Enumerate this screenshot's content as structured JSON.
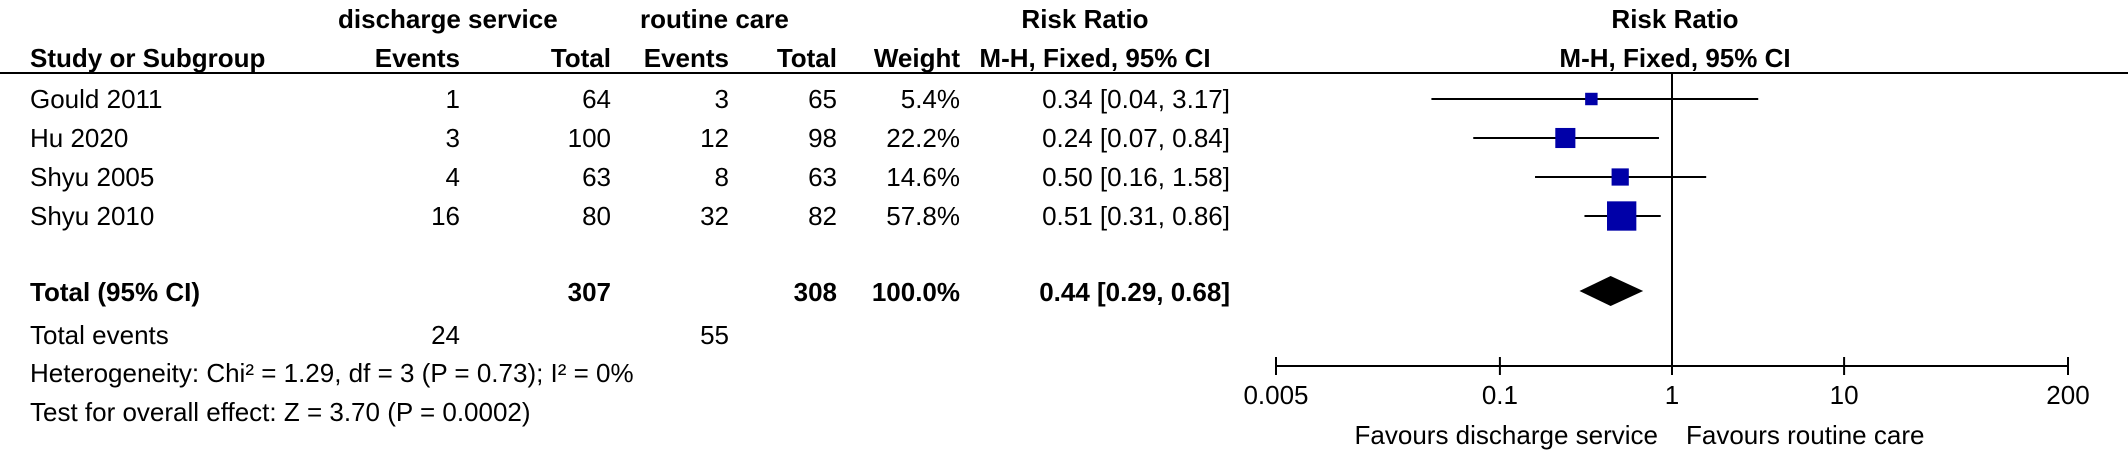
{
  "header": {
    "group1": "discharge service",
    "group2": "routine care",
    "rr_table": "Risk Ratio",
    "rr_plot": "Risk Ratio",
    "col_study": "Study or Subgroup",
    "col_events1": "Events",
    "col_total1": "Total",
    "col_events2": "Events",
    "col_total2": "Total",
    "col_weight": "Weight",
    "col_method_table": "M-H, Fixed, 95% CI",
    "col_method_plot": "M-H, Fixed, 95% CI"
  },
  "studies": [
    {
      "name": "Gould 2011",
      "events1": "1",
      "total1": "64",
      "events2": "3",
      "total2": "65",
      "weight": "5.4%",
      "ci": "0.34 [0.04, 3.17]"
    },
    {
      "name": "Hu 2020",
      "events1": "3",
      "total1": "100",
      "events2": "12",
      "total2": "98",
      "weight": "22.2%",
      "ci": "0.24 [0.07, 0.84]"
    },
    {
      "name": "Shyu 2005",
      "events1": "4",
      "total1": "63",
      "events2": "8",
      "total2": "63",
      "weight": "14.6%",
      "ci": "0.50 [0.16, 1.58]"
    },
    {
      "name": "Shyu 2010",
      "events1": "16",
      "total1": "80",
      "events2": "32",
      "total2": "82",
      "weight": "57.8%",
      "ci": "0.51 [0.31, 0.86]"
    }
  ],
  "total": {
    "label": "Total (95% CI)",
    "total1": "307",
    "total2": "308",
    "weight": "100.0%",
    "ci": "0.44 [0.29, 0.68]"
  },
  "total_events": {
    "label": "Total events",
    "events1": "24",
    "events2": "55"
  },
  "heterogeneity": "Heterogeneity: Chi² = 1.29, df = 3 (P = 0.73); I² = 0%",
  "overall_effect": "Test for overall effect: Z = 3.70 (P = 0.0002)",
  "colors": {
    "marker": "#0000a8",
    "diamond": "#000000",
    "line": "#000000"
  },
  "chart_data": {
    "type": "forest",
    "scale": "log",
    "xlim": [
      0.005,
      200
    ],
    "ticks": [
      0.005,
      0.1,
      1,
      10,
      200
    ],
    "tick_labels": [
      "0.005",
      "0.1",
      "1",
      "10",
      "200"
    ],
    "null_value": 1,
    "favours_left": "Favours discharge service",
    "favours_right": "Favours routine care",
    "studies": [
      {
        "name": "Gould 2011",
        "rr": 0.34,
        "lo": 0.04,
        "hi": 3.17,
        "weight": 5.4
      },
      {
        "name": "Hu 2020",
        "rr": 0.24,
        "lo": 0.07,
        "hi": 0.84,
        "weight": 22.2
      },
      {
        "name": "Shyu 2005",
        "rr": 0.5,
        "lo": 0.16,
        "hi": 1.58,
        "weight": 14.6
      },
      {
        "name": "Shyu 2010",
        "rr": 0.51,
        "lo": 0.31,
        "hi": 0.86,
        "weight": 57.8
      }
    ],
    "pooled": {
      "rr": 0.44,
      "lo": 0.29,
      "hi": 0.68
    }
  }
}
